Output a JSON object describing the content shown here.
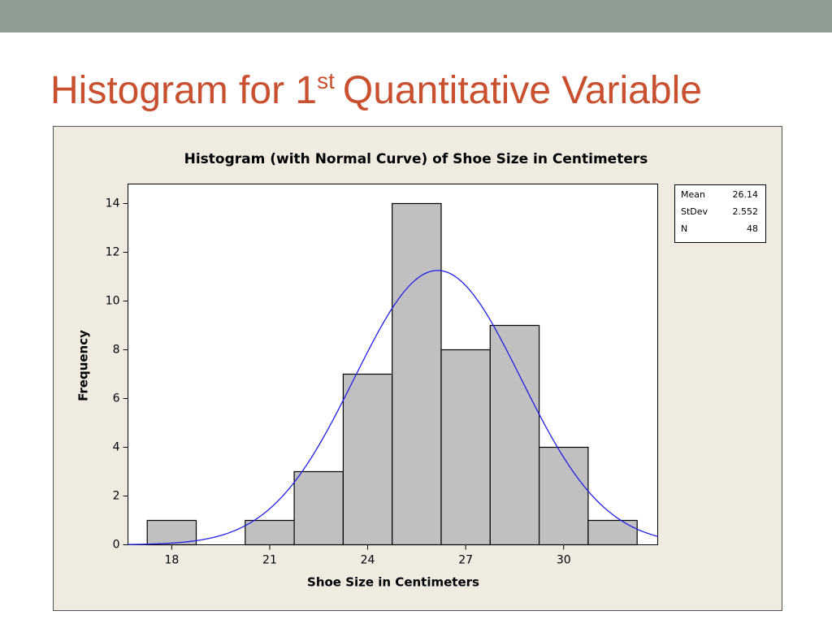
{
  "slide": {
    "title": {
      "before": "Histogram for 1",
      "sup": "st",
      "after": "Quantitative Variable"
    }
  },
  "chart_data": {
    "type": "histogram",
    "title": "Histogram (with Normal Curve) of Shoe Size in Centimeters",
    "x_label": "Shoe Size in Centimeters",
    "y_label": "Frequency",
    "bins": [
      17.25,
      18.75,
      20.25,
      21.75,
      23.25,
      24.75,
      26.25,
      27.75,
      29.25,
      30.75,
      32.25
    ],
    "values": [
      1,
      0,
      1,
      3,
      7,
      14,
      8,
      9,
      4,
      1
    ],
    "color": "#c0c0c0",
    "curve_color": "#1f1fe6",
    "xlim": [
      16.66,
      32.88
    ],
    "xticks": [
      18,
      21,
      24,
      27,
      30
    ],
    "ylim": [
      0,
      14.8
    ],
    "yticks": [
      0,
      2,
      4,
      6,
      8,
      10,
      12,
      14
    ],
    "stats": [
      {
        "label": "Mean",
        "value": 26.14
      },
      {
        "label": "StDev",
        "value": 2.552
      },
      {
        "label": "N",
        "value": 48
      }
    ]
  }
}
